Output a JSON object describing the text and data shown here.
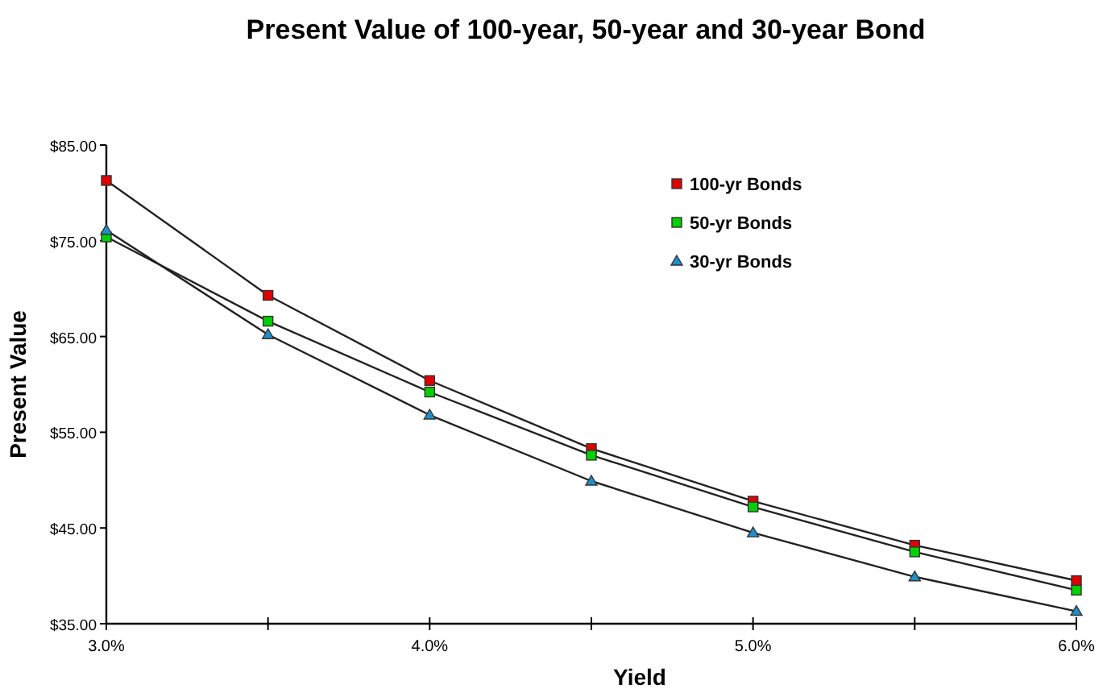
{
  "chart_data": {
    "type": "line",
    "title": "Present Value of 100-year, 50-year and 30-year Bond",
    "xlabel": "Yield",
    "ylabel": "Present Value",
    "x": [
      3.0,
      3.5,
      4.0,
      4.5,
      5.0,
      5.5,
      6.0
    ],
    "series": [
      {
        "name": "100-yr Bonds",
        "color": "#e00000",
        "marker": "square",
        "values": [
          81.3,
          69.3,
          60.4,
          53.3,
          47.8,
          43.2,
          39.5
        ]
      },
      {
        "name": "50-yr Bonds",
        "color": "#00d000",
        "marker": "square",
        "values": [
          75.4,
          66.6,
          59.2,
          52.6,
          47.2,
          42.5,
          38.5
        ]
      },
      {
        "name": "30-yr Bonds",
        "color": "#1f8fc8",
        "marker": "triangle",
        "values": [
          76.1,
          65.2,
          56.8,
          49.9,
          44.5,
          39.9,
          36.3
        ]
      }
    ],
    "xlim": [
      3.0,
      6.0
    ],
    "xticks": [
      {
        "value": 3.0,
        "label": "3.0%"
      },
      {
        "value": 3.5,
        "label": null
      },
      {
        "value": 4.0,
        "label": "4.0%"
      },
      {
        "value": 4.5,
        "label": null
      },
      {
        "value": 5.0,
        "label": "5.0%"
      },
      {
        "value": 5.5,
        "label": null
      },
      {
        "value": 6.0,
        "label": "6.0%"
      }
    ],
    "ylim": [
      35,
      85
    ],
    "yticks": [
      {
        "value": 35,
        "label": "$35.00"
      },
      {
        "value": 45,
        "label": "$45.00"
      },
      {
        "value": 55,
        "label": "$55.00"
      },
      {
        "value": 65,
        "label": "$65.00"
      },
      {
        "value": 75,
        "label": "$75.00"
      },
      {
        "value": 85,
        "label": "$85.00"
      }
    ],
    "grid": false,
    "legend": "top right",
    "line_style": "solid"
  }
}
